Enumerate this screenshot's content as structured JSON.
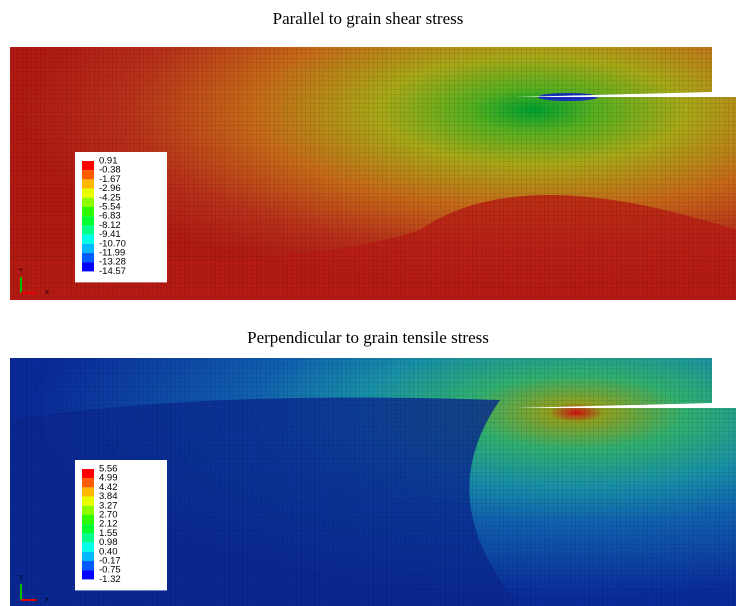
{
  "panels": [
    {
      "title": "Parallel to grain shear stress",
      "legend": [
        "0.91",
        "-0.38",
        "-1.67",
        "-2.96",
        "-4.25",
        "-5.54",
        "-6.83",
        "-8.12",
        "-9.41",
        "-10.70",
        "-11.99",
        "-13.28",
        "-14.57"
      ],
      "triad": {
        "y": "Y",
        "x": "X"
      }
    },
    {
      "title": "Perpendicular to grain tensile stress",
      "legend": [
        "5.56",
        "4.99",
        "4.42",
        "3.84",
        "3.27",
        "2.70",
        "2.12",
        "1.55",
        "0.98",
        "0.40",
        "-0.17",
        "-0.75",
        "-1.32"
      ],
      "triad": {
        "y": "Y",
        "x": "X"
      }
    }
  ]
}
